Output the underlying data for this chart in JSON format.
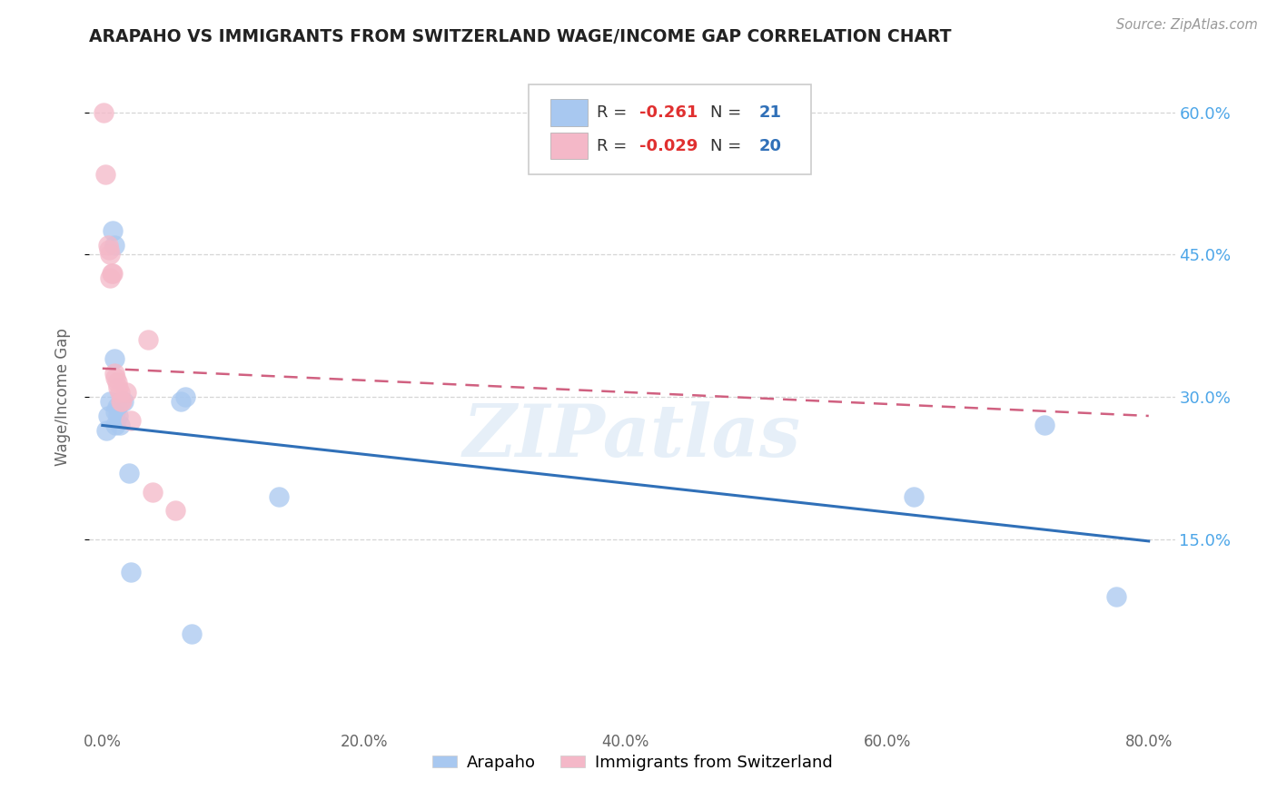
{
  "title": "ARAPAHO VS IMMIGRANTS FROM SWITZERLAND WAGE/INCOME GAP CORRELATION CHART",
  "source": "Source: ZipAtlas.com",
  "ylabel": "Wage/Income Gap",
  "xlim": [
    -0.01,
    0.82
  ],
  "ylim": [
    -0.05,
    0.65
  ],
  "yticks": [
    0.15,
    0.3,
    0.45,
    0.6
  ],
  "ytick_labels": [
    "15.0%",
    "30.0%",
    "45.0%",
    "60.0%"
  ],
  "xticks": [
    0.0,
    0.2,
    0.4,
    0.6,
    0.8
  ],
  "xtick_labels": [
    "0.0%",
    "20.0%",
    "40.0%",
    "60.0%",
    "80.0%"
  ],
  "blue_label": "Arapaho",
  "pink_label": "Immigrants from Switzerland",
  "blue_r": "-0.261",
  "blue_n": "21",
  "pink_r": "-0.029",
  "pink_n": "20",
  "blue_color": "#a8c8f0",
  "pink_color": "#f4b8c8",
  "blue_line_color": "#3070b8",
  "pink_line_color": "#d06080",
  "watermark": "ZIPatlas",
  "blue_points_x": [
    0.003,
    0.004,
    0.006,
    0.008,
    0.009,
    0.009,
    0.01,
    0.01,
    0.011,
    0.012,
    0.013,
    0.016,
    0.02,
    0.022,
    0.06,
    0.063,
    0.068,
    0.135,
    0.62,
    0.72,
    0.775
  ],
  "blue_points_y": [
    0.265,
    0.28,
    0.295,
    0.475,
    0.46,
    0.34,
    0.285,
    0.27,
    0.29,
    0.28,
    0.27,
    0.295,
    0.22,
    0.115,
    0.295,
    0.3,
    0.05,
    0.195,
    0.195,
    0.27,
    0.09
  ],
  "pink_points_x": [
    0.001,
    0.002,
    0.004,
    0.005,
    0.006,
    0.006,
    0.007,
    0.008,
    0.009,
    0.01,
    0.011,
    0.012,
    0.013,
    0.014,
    0.015,
    0.018,
    0.022,
    0.035,
    0.038,
    0.056
  ],
  "pink_points_y": [
    0.6,
    0.535,
    0.46,
    0.455,
    0.45,
    0.425,
    0.43,
    0.43,
    0.325,
    0.32,
    0.315,
    0.31,
    0.305,
    0.295,
    0.295,
    0.305,
    0.275,
    0.36,
    0.2,
    0.18
  ],
  "blue_trend_x": [
    0.0,
    0.8
  ],
  "blue_trend_y": [
    0.27,
    0.148
  ],
  "pink_trend_x": [
    0.0,
    0.8
  ],
  "pink_trend_y": [
    0.33,
    0.28
  ],
  "legend_r_color": "#e03030",
  "legend_n_color": "#3070b8",
  "legend_text_color": "#333333"
}
